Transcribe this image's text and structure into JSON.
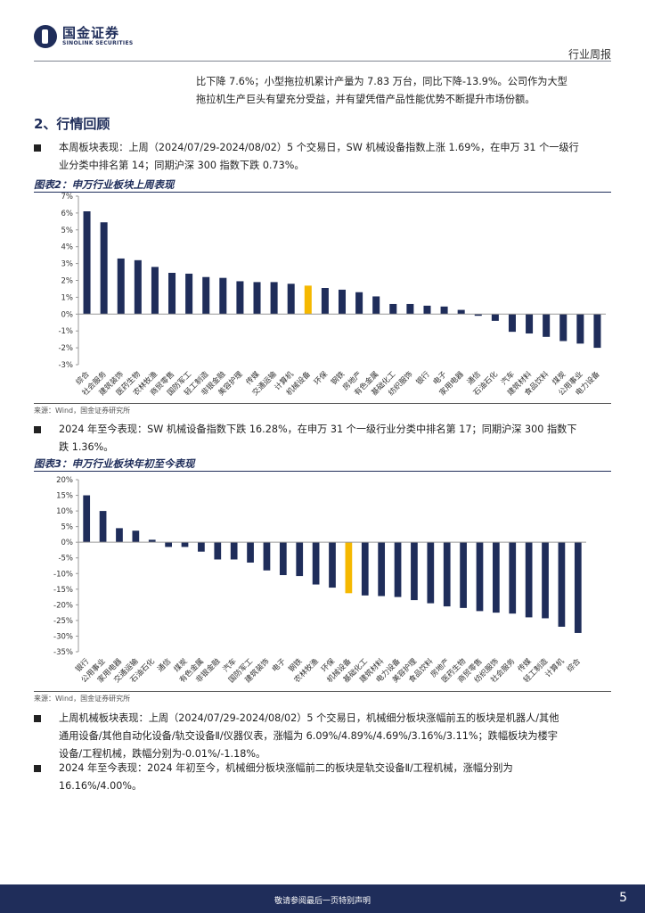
{
  "header": {
    "logo_cn": "国金证券",
    "logo_en": "SINOLINK SECURITIES",
    "doc_type": "行业周报"
  },
  "intro": {
    "line1": "比下降 7.6%；小型拖拉机累计产量为 7.83 万台，同比下降-13.9%。公司作为大型",
    "line2": "拖拉机生产巨头有望充分受益，并有望凭借产品性能优势不断提升市场份额。"
  },
  "section": {
    "title": "2、行情回顾"
  },
  "bullets": [
    {
      "line1": "本周板块表现：上周（2024/07/29-2024/08/02）5 个交易日，SW 机械设备指数上涨 1.69%，在申万 31 个一级行",
      "line2": "业分类中排名第 14；同期沪深 300 指数下跌 0.73%。"
    },
    {
      "line1": "2024 年至今表现：SW 机械设备指数下跌 16.28%，在申万 31 个一级行业分类中排名第 17；同期沪深 300 指数下",
      "line2": "跌 1.36%。"
    },
    {
      "line1": "上周机械板块表现：上周（2024/07/29-2024/08/02）5 个交易日，机械细分板块涨幅前五的板块是机器人/其他",
      "line2": "通用设备/其他自动化设备/轨交设备Ⅱ/仪器仪表，涨幅为 6.09%/4.89%/4.69%/3.16%/3.11%；跌幅板块为楼宇",
      "line3": "设备/工程机械，跌幅分别为-0.01%/-1.18%。"
    },
    {
      "line1": "2024 年至今表现：2024 年初至今，机械细分板块涨幅前二的板块是轨交设备Ⅱ/工程机械，涨幅分别为",
      "line2": "16.16%/4.00%。"
    }
  ],
  "figures": [
    {
      "title": "图表2：申万行业板块上周表现",
      "source": "来源：Wind，国金证券研究所"
    },
    {
      "title": "图表3：申万行业板块年初至今表现",
      "source": "来源：Wind，国金证券研究所"
    }
  ],
  "chart_data": [
    {
      "type": "bar",
      "categories": [
        "综合",
        "社会服务",
        "建筑装饰",
        "医药生物",
        "农林牧渔",
        "商贸零售",
        "国防军工",
        "轻工制造",
        "非银金融",
        "美容护理",
        "传媒",
        "交通运输",
        "计算机",
        "机械设备",
        "环保",
        "钢铁",
        "房地产",
        "有色金属",
        "基础化工",
        "纺织服饰",
        "银行",
        "电子",
        "家用电器",
        "通信",
        "石油石化",
        "汽车",
        "建筑材料",
        "食品饮料",
        "煤炭",
        "公用事业",
        "电力设备"
      ],
      "values": [
        6.1,
        5.45,
        3.3,
        3.2,
        2.8,
        2.45,
        2.4,
        2.2,
        2.15,
        1.95,
        1.9,
        1.9,
        1.8,
        1.69,
        1.55,
        1.45,
        1.3,
        1.05,
        0.6,
        0.6,
        0.5,
        0.45,
        0.25,
        -0.1,
        -0.4,
        -1.05,
        -1.15,
        -1.35,
        -1.6,
        -1.75,
        -2.0
      ],
      "highlight": "机械设备",
      "ylim": [
        -3,
        7
      ],
      "yticks": [
        -3,
        -2,
        -1,
        0,
        1,
        2,
        3,
        4,
        5,
        6,
        7
      ],
      "ytick_suffix": "%",
      "colors": {
        "bar": "#1f2d5a",
        "highlight": "#f5b800"
      },
      "grid": false
    },
    {
      "type": "bar",
      "categories": [
        "银行",
        "公用事业",
        "家用电器",
        "交通运输",
        "石油石化",
        "通信",
        "煤炭",
        "有色金属",
        "非银金融",
        "汽车",
        "国防军工",
        "建筑装饰",
        "电子",
        "钢铁",
        "农林牧渔",
        "环保",
        "机械设备",
        "基础化工",
        "建筑材料",
        "电力设备",
        "美容护理",
        "食品饮料",
        "房地产",
        "医药生物",
        "商贸零售",
        "纺织服饰",
        "社会服务",
        "传媒",
        "轻工制造",
        "计算机",
        "综合"
      ],
      "values": [
        15.0,
        10.0,
        4.5,
        3.7,
        0.8,
        -1.5,
        -1.5,
        -3.0,
        -5.5,
        -5.5,
        -6.5,
        -9.0,
        -10.5,
        -10.8,
        -13.5,
        -14.5,
        -16.28,
        -17.0,
        -17.2,
        -17.5,
        -18.5,
        -19.5,
        -20.5,
        -21.0,
        -22.0,
        -22.5,
        -22.8,
        -24.0,
        -24.3,
        -27.0,
        -29.0
      ],
      "highlight": "机械设备",
      "ylim": [
        -35,
        20
      ],
      "yticks": [
        -35,
        -30,
        -25,
        -20,
        -15,
        -10,
        -5,
        0,
        5,
        10,
        15,
        20
      ],
      "ytick_suffix": "%",
      "colors": {
        "bar": "#1f2d5a",
        "highlight": "#f5b800"
      },
      "grid": false
    }
  ],
  "footer": {
    "disclaimer": "敬请参阅最后一页特别声明",
    "page": "5"
  }
}
